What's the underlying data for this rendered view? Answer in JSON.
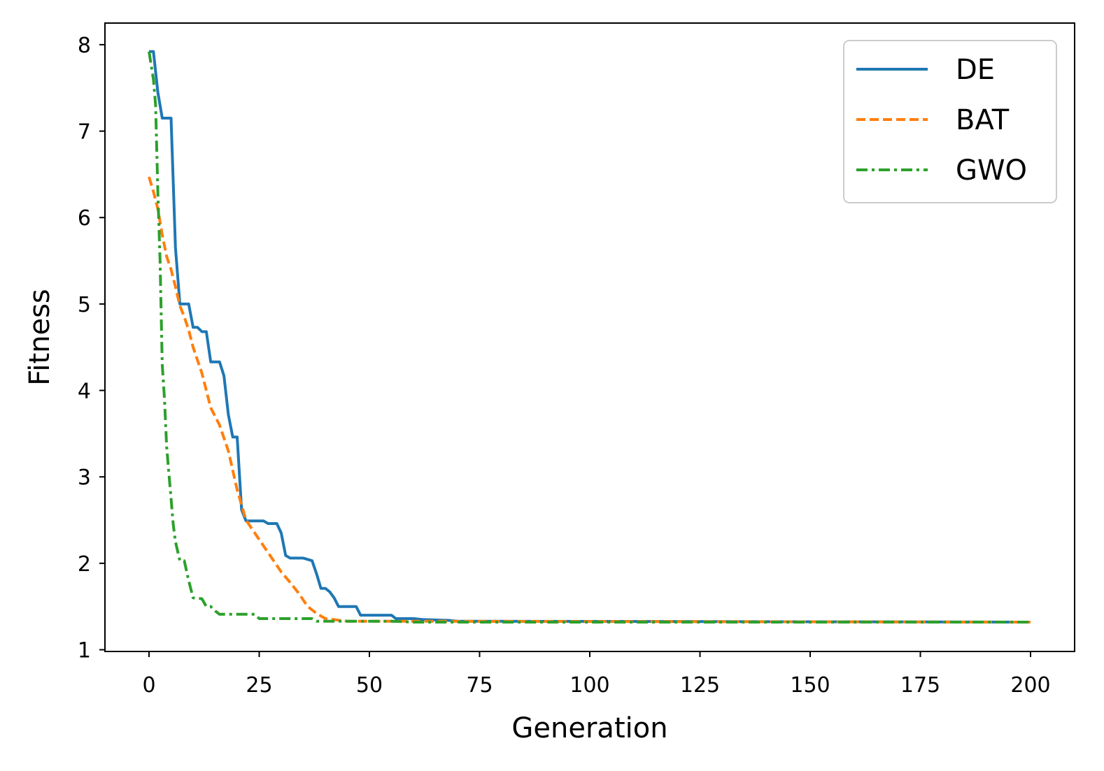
{
  "chart_data": {
    "type": "line",
    "title": "",
    "xlabel": "Generation",
    "ylabel": "Fitness",
    "xlim": [
      -10,
      210
    ],
    "ylim": [
      0.98,
      8.25
    ],
    "xticks": [
      0,
      25,
      50,
      75,
      100,
      125,
      150,
      175,
      200
    ],
    "yticks": [
      1,
      2,
      3,
      4,
      5,
      6,
      7,
      8
    ],
    "grid": false,
    "legend": "top-right",
    "series": [
      {
        "name": "DE",
        "color": "#1f77b4",
        "dash": "solid",
        "points": [
          [
            0,
            7.92
          ],
          [
            1,
            7.92
          ],
          [
            2,
            7.45
          ],
          [
            3,
            7.15
          ],
          [
            4,
            7.15
          ],
          [
            5,
            7.15
          ],
          [
            6,
            5.65
          ],
          [
            7,
            5.0
          ],
          [
            8,
            5.0
          ],
          [
            9,
            5.0
          ],
          [
            10,
            4.73
          ],
          [
            11,
            4.73
          ],
          [
            12,
            4.68
          ],
          [
            13,
            4.68
          ],
          [
            14,
            4.33
          ],
          [
            15,
            4.33
          ],
          [
            16,
            4.33
          ],
          [
            17,
            4.17
          ],
          [
            18,
            3.72
          ],
          [
            19,
            3.46
          ],
          [
            20,
            3.46
          ],
          [
            21,
            2.62
          ],
          [
            22,
            2.49
          ],
          [
            25,
            2.49
          ],
          [
            26,
            2.49
          ],
          [
            27,
            2.46
          ],
          [
            29,
            2.46
          ],
          [
            30,
            2.35
          ],
          [
            31,
            2.09
          ],
          [
            32,
            2.06
          ],
          [
            35,
            2.06
          ],
          [
            37,
            2.03
          ],
          [
            38,
            1.88
          ],
          [
            39,
            1.71
          ],
          [
            40,
            1.71
          ],
          [
            41,
            1.67
          ],
          [
            42,
            1.6
          ],
          [
            43,
            1.5
          ],
          [
            47,
            1.5
          ],
          [
            48,
            1.4
          ],
          [
            55,
            1.4
          ],
          [
            56,
            1.36
          ],
          [
            60,
            1.36
          ],
          [
            62,
            1.35
          ],
          [
            68,
            1.34
          ],
          [
            70,
            1.33
          ],
          [
            75,
            1.33
          ],
          [
            199,
            1.32
          ]
        ]
      },
      {
        "name": "BAT",
        "color": "#ff7f0e",
        "dash": "dashed",
        "points": [
          [
            0,
            6.47
          ],
          [
            1,
            6.3
          ],
          [
            2,
            6.1
          ],
          [
            3,
            5.8
          ],
          [
            4,
            5.55
          ],
          [
            5,
            5.4
          ],
          [
            6,
            5.2
          ],
          [
            7,
            4.98
          ],
          [
            8,
            4.85
          ],
          [
            9,
            4.7
          ],
          [
            10,
            4.5
          ],
          [
            12,
            4.2
          ],
          [
            14,
            3.8
          ],
          [
            16,
            3.6
          ],
          [
            18,
            3.3
          ],
          [
            20,
            2.85
          ],
          [
            22,
            2.5
          ],
          [
            24,
            2.35
          ],
          [
            26,
            2.2
          ],
          [
            28,
            2.05
          ],
          [
            30,
            1.9
          ],
          [
            32,
            1.78
          ],
          [
            34,
            1.65
          ],
          [
            36,
            1.5
          ],
          [
            38,
            1.42
          ],
          [
            40,
            1.36
          ],
          [
            45,
            1.33
          ],
          [
            55,
            1.33
          ],
          [
            200,
            1.32
          ]
        ]
      },
      {
        "name": "GWO",
        "color": "#2ca02c",
        "dash": "dashdot",
        "points": [
          [
            0,
            7.92
          ],
          [
            1,
            7.6
          ],
          [
            1.5,
            7.3
          ],
          [
            2,
            6.3
          ],
          [
            2.5,
            5.5
          ],
          [
            3,
            4.3
          ],
          [
            3.5,
            3.9
          ],
          [
            4,
            3.35
          ],
          [
            4.5,
            3.05
          ],
          [
            5,
            2.75
          ],
          [
            5.5,
            2.45
          ],
          [
            6,
            2.25
          ],
          [
            7,
            2.03
          ],
          [
            8,
            2.03
          ],
          [
            9,
            1.8
          ],
          [
            10,
            1.6
          ],
          [
            12,
            1.59
          ],
          [
            13,
            1.5
          ],
          [
            14,
            1.5
          ],
          [
            15,
            1.45
          ],
          [
            16,
            1.41
          ],
          [
            17,
            1.41
          ],
          [
            20,
            1.41
          ],
          [
            24,
            1.41
          ],
          [
            25,
            1.36
          ],
          [
            37,
            1.36
          ],
          [
            38,
            1.33
          ],
          [
            55,
            1.33
          ],
          [
            60,
            1.32
          ],
          [
            200,
            1.32
          ]
        ]
      }
    ]
  }
}
